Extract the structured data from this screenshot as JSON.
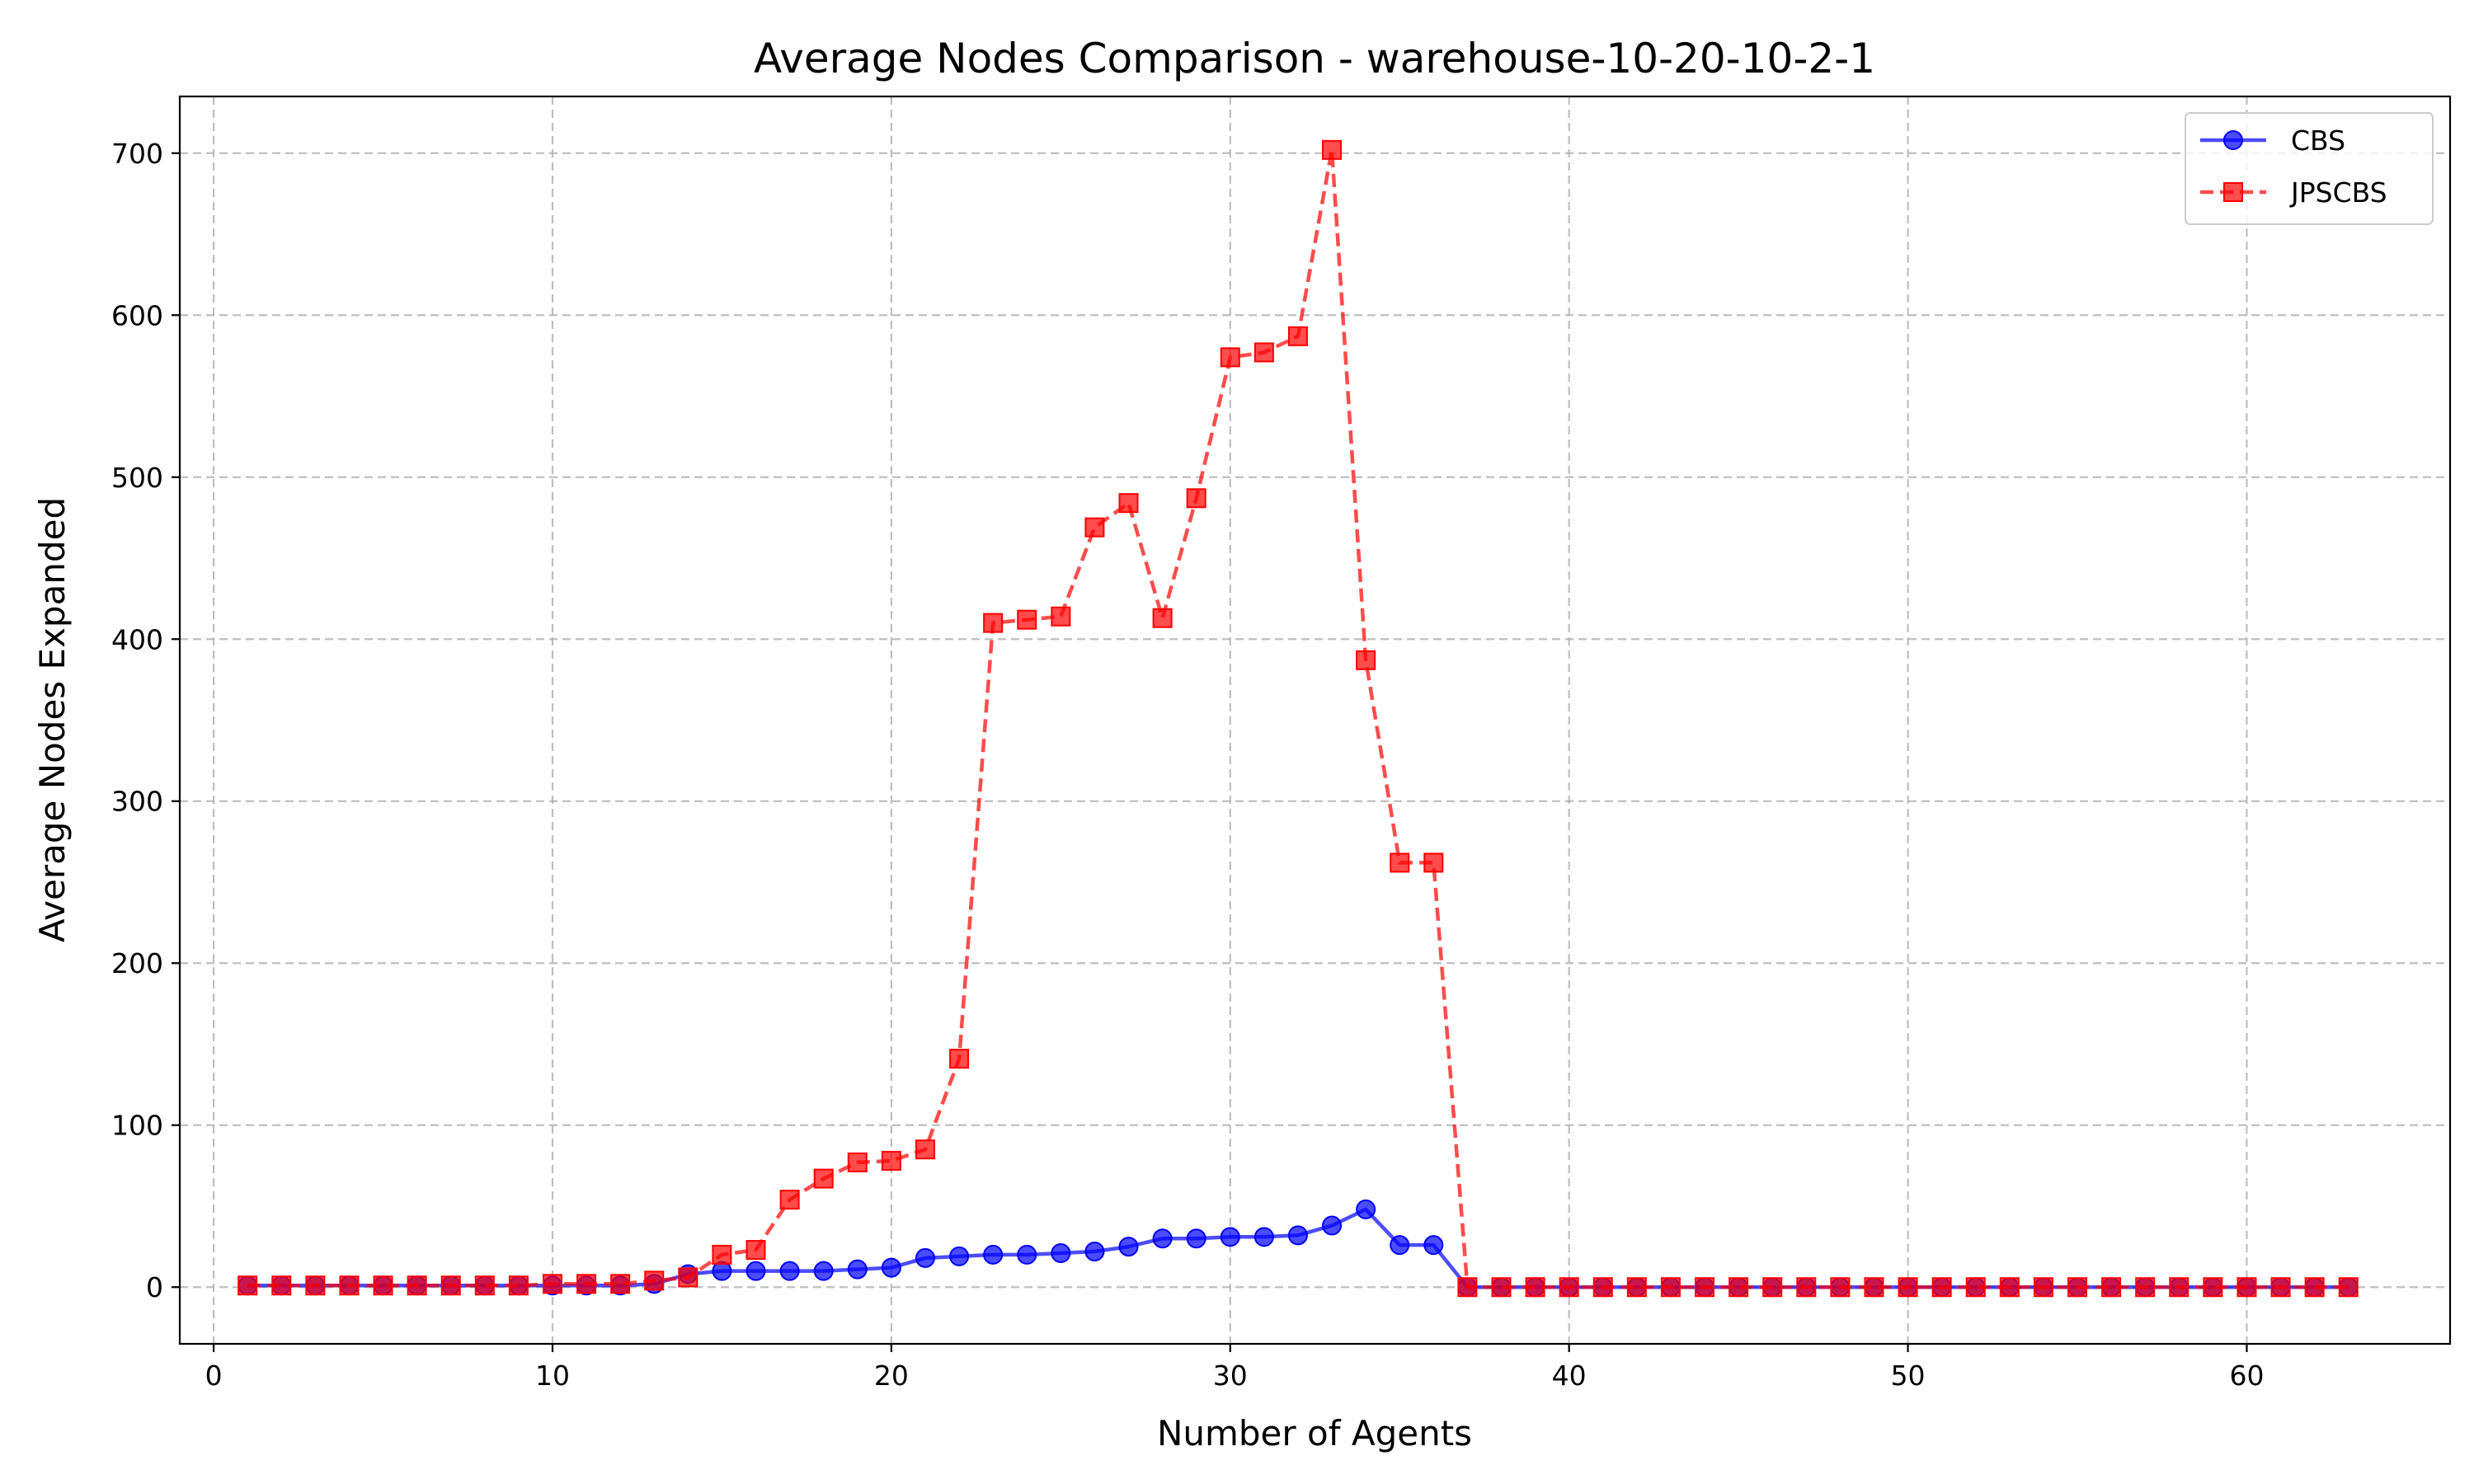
{
  "chart_data": {
    "type": "line",
    "title": "Average Nodes Comparison - warehouse-10-20-10-2-1",
    "xlabel": "Number of Agents",
    "ylabel": "Average Nodes Expanded",
    "xlim": [
      -1,
      66
    ],
    "ylim": [
      -35,
      735
    ],
    "xticks": [
      0,
      10,
      20,
      30,
      40,
      50,
      60
    ],
    "yticks": [
      0,
      100,
      200,
      300,
      400,
      500,
      600,
      700
    ],
    "grid": true,
    "legend_position": "top-right",
    "x": [
      1,
      2,
      3,
      4,
      5,
      6,
      7,
      8,
      9,
      10,
      11,
      12,
      13,
      14,
      15,
      16,
      17,
      18,
      19,
      20,
      21,
      22,
      23,
      24,
      25,
      26,
      27,
      28,
      29,
      30,
      31,
      32,
      33,
      34,
      35,
      36,
      37,
      38,
      39,
      40,
      41,
      42,
      43,
      44,
      45,
      46,
      47,
      48,
      49,
      50,
      51,
      52,
      53,
      54,
      55,
      56,
      57,
      58,
      59,
      60,
      61,
      62,
      63
    ],
    "series": [
      {
        "name": "CBS",
        "color": "#0000ff",
        "marker": "circle",
        "linestyle": "solid",
        "values": [
          1,
          1,
          1,
          1,
          1,
          1,
          1,
          1,
          1,
          1,
          1,
          1,
          2,
          8,
          10,
          10,
          10,
          10,
          11,
          12,
          18,
          19,
          20,
          20,
          21,
          22,
          25,
          30,
          30,
          31,
          31,
          32,
          38,
          48,
          26,
          26,
          0,
          0,
          0,
          0,
          0,
          0,
          0,
          0,
          0,
          0,
          0,
          0,
          0,
          0,
          0,
          0,
          0,
          0,
          0,
          0,
          0,
          0,
          0,
          0,
          0,
          0,
          0
        ]
      },
      {
        "name": "JPSCBS",
        "color": "#ff0000",
        "marker": "square",
        "linestyle": "dashed",
        "values": [
          1,
          1,
          1,
          1,
          1,
          1,
          1,
          1,
          1,
          2,
          2,
          2,
          4,
          6,
          20,
          23,
          54,
          67,
          77,
          78,
          85,
          141,
          410,
          412,
          414,
          469,
          484,
          413,
          487,
          574,
          577,
          587,
          702,
          387,
          262,
          262,
          0,
          0,
          0,
          0,
          0,
          0,
          0,
          0,
          0,
          0,
          0,
          0,
          0,
          0,
          0,
          0,
          0,
          0,
          0,
          0,
          0,
          0,
          0,
          0,
          0,
          0,
          0
        ]
      }
    ]
  }
}
